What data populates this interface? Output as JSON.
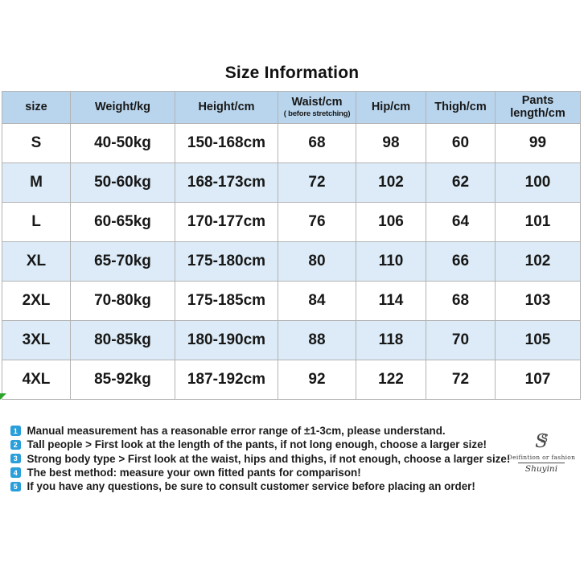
{
  "title": "Size Information",
  "table": {
    "headers": [
      {
        "label": "size",
        "sub": ""
      },
      {
        "label": "Weight/kg",
        "sub": ""
      },
      {
        "label": "Height/cm",
        "sub": ""
      },
      {
        "label": "Waist/cm",
        "sub": "( before stretching)"
      },
      {
        "label": "Hip/cm",
        "sub": ""
      },
      {
        "label": "Thigh/cm",
        "sub": ""
      },
      {
        "label": "Pants length/cm",
        "sub": ""
      }
    ],
    "rows": [
      [
        "S",
        "40-50kg",
        "150-168cm",
        "68",
        "98",
        "60",
        "99"
      ],
      [
        "M",
        "50-60kg",
        "168-173cm",
        "72",
        "102",
        "62",
        "100"
      ],
      [
        "L",
        "60-65kg",
        "170-177cm",
        "76",
        "106",
        "64",
        "101"
      ],
      [
        "XL",
        "65-70kg",
        "175-180cm",
        "80",
        "110",
        "66",
        "102"
      ],
      [
        "2XL",
        "70-80kg",
        "175-185cm",
        "84",
        "114",
        "68",
        "103"
      ],
      [
        "3XL",
        "80-85kg",
        "180-190cm",
        "88",
        "118",
        "70",
        "105"
      ],
      [
        "4XL",
        "85-92kg",
        "187-192cm",
        "92",
        "122",
        "72",
        "107"
      ]
    ]
  },
  "notes": [
    {
      "num": "1",
      "text": "Manual measurement has a reasonable error range of ±1-3cm, please understand."
    },
    {
      "num": "2",
      "text": "Tall people > First look at the length of the pants, if not long enough, choose a larger size!"
    },
    {
      "num": "3",
      "text": "Strong body type > First look at the waist, hips and thighs, if not enough, choose a larger size!"
    },
    {
      "num": "4",
      "text": "The best method: measure your own fitted pants for comparison!"
    },
    {
      "num": "5",
      "text": "If you have any questions, be sure to consult customer service before placing an order!"
    }
  ],
  "logo": {
    "monogram": "S",
    "tagline": "Deifintion or fashion",
    "signature": "Shuyini"
  },
  "colors": {
    "header_bg": "#b9d5ed",
    "alt_row_bg": "#dcebf7",
    "bullet_blue": "#2b9fd9",
    "corner_green": "#2aa52a",
    "border_gray": "#b3b3b3"
  }
}
